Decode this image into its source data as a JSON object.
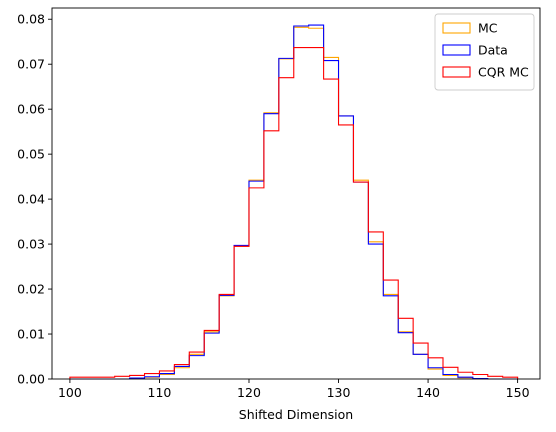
{
  "chart_data": {
    "type": "step-histogram",
    "title": "",
    "xlabel": "Shifted Dimension",
    "ylabel": "",
    "xlim": [
      98,
      152.5
    ],
    "ylim": [
      0,
      0.0825
    ],
    "xticks": [
      100,
      110,
      120,
      130,
      140,
      150
    ],
    "yticks": [
      0.0,
      0.01,
      0.02,
      0.03,
      0.04,
      0.05,
      0.06,
      0.07,
      0.08
    ],
    "ytick_labels": [
      "0.00",
      "0.01",
      "0.02",
      "0.03",
      "0.04",
      "0.05",
      "0.06",
      "0.07",
      "0.08"
    ],
    "grid": false,
    "legend": "top-right",
    "bin_edges": [
      100,
      101.667,
      103.333,
      105,
      106.667,
      108.333,
      110,
      111.667,
      113.333,
      115,
      116.667,
      118.333,
      120,
      121.667,
      123.333,
      125,
      126.667,
      128.333,
      130,
      131.667,
      133.333,
      135,
      136.667,
      138.333,
      140,
      141.667,
      143.333,
      145,
      146.667,
      148.333,
      150
    ],
    "series": [
      {
        "name": "MC",
        "color": "#ffa500",
        "values": [
          0.0,
          0.0,
          0.0,
          0.0,
          0.0001,
          0.0004,
          0.001,
          0.0025,
          0.0055,
          0.0105,
          0.0185,
          0.0295,
          0.0442,
          0.0592,
          0.0712,
          0.0782,
          0.078,
          0.0715,
          0.0585,
          0.0442,
          0.0305,
          0.0188,
          0.0105,
          0.0055,
          0.0022,
          0.0008,
          0.0003,
          0.0001,
          0.0,
          0.0
        ]
      },
      {
        "name": "Data",
        "color": "#0000ff",
        "values": [
          0.0,
          0.0,
          0.0,
          0.0,
          0.0002,
          0.0005,
          0.0012,
          0.0028,
          0.0052,
          0.0102,
          0.0186,
          0.0297,
          0.044,
          0.059,
          0.0713,
          0.0785,
          0.0787,
          0.0708,
          0.0585,
          0.0438,
          0.03,
          0.0185,
          0.0103,
          0.0055,
          0.0025,
          0.001,
          0.0004,
          0.0001,
          0.0,
          0.0
        ]
      },
      {
        "name": "CQR MC",
        "color": "#ff0000",
        "values": [
          0.0004,
          0.0004,
          0.0004,
          0.0006,
          0.0008,
          0.0012,
          0.0018,
          0.0032,
          0.006,
          0.0108,
          0.0188,
          0.0295,
          0.0425,
          0.0552,
          0.067,
          0.0737,
          0.0737,
          0.0667,
          0.0565,
          0.0438,
          0.0327,
          0.022,
          0.0135,
          0.008,
          0.0047,
          0.0026,
          0.0015,
          0.001,
          0.0006,
          0.0004
        ]
      }
    ]
  }
}
